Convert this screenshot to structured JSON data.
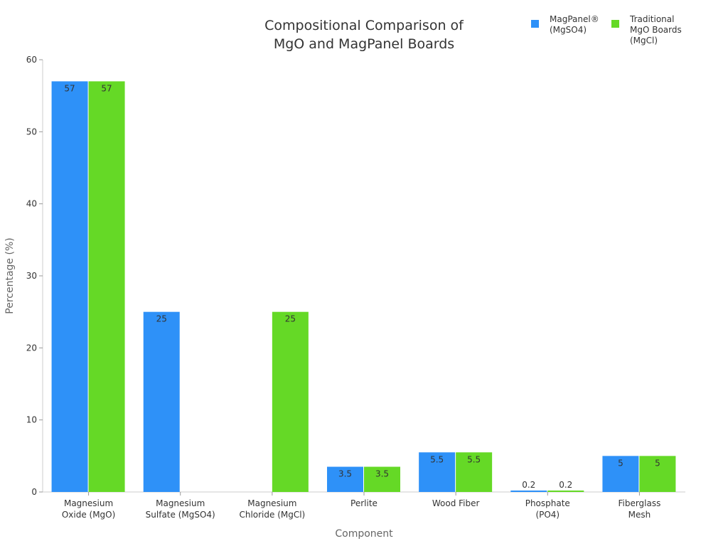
{
  "chart_data": {
    "type": "bar",
    "title": [
      "Compositional Comparison of",
      "MgO and MagPanel Boards"
    ],
    "xlabel": "Component",
    "ylabel": "Percentage (%)",
    "ylim": [
      0,
      60
    ],
    "yticks": [
      0,
      10,
      20,
      30,
      40,
      50,
      60
    ],
    "grid": false,
    "legend_position": "top-right",
    "categories": [
      [
        "Magnesium",
        "Oxide (MgO)"
      ],
      [
        "Magnesium",
        "Sulfate (MgSO4)"
      ],
      [
        "Magnesium",
        "Chloride (MgCl)"
      ],
      [
        "Perlite"
      ],
      [
        "Wood Fiber"
      ],
      [
        "Phosphate",
        "(PO4)"
      ],
      [
        "Fiberglass",
        "Mesh"
      ]
    ],
    "series": [
      {
        "name": [
          "MagPanel®",
          "(MgSO4)"
        ],
        "color": "#2e91f8",
        "values": [
          57,
          25,
          0,
          3.5,
          5.5,
          0.2,
          5
        ]
      },
      {
        "name": [
          "Traditional",
          "MgO Boards",
          "(MgCl)"
        ],
        "color": "#65d926",
        "values": [
          57,
          0,
          25,
          3.5,
          5.5,
          0.2,
          5
        ]
      }
    ]
  }
}
